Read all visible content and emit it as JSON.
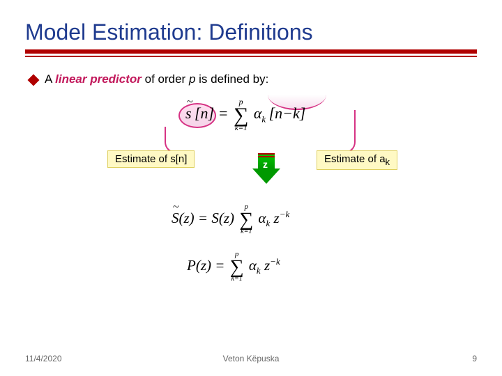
{
  "title": "Model Estimation: Definitions",
  "bullet": {
    "prefix": "A ",
    "term": "linear predictor",
    "mid": " of order ",
    "order_var": "p",
    "suffix": " is defined by:"
  },
  "labels": {
    "left": "Estimate of s[n]",
    "right_prefix": "Estimate of a",
    "right_sub": "k"
  },
  "arrow_label": "z",
  "colors": {
    "title": "#1f3b8f",
    "rule": "#b00000",
    "term": "#c2185b",
    "oval_border": "#d63384",
    "label_bg": "#fff9c4",
    "arrow_fill": "#009900"
  },
  "footer": {
    "date": "11/4/2020",
    "author": "Veton Këpuska",
    "page": "9"
  }
}
